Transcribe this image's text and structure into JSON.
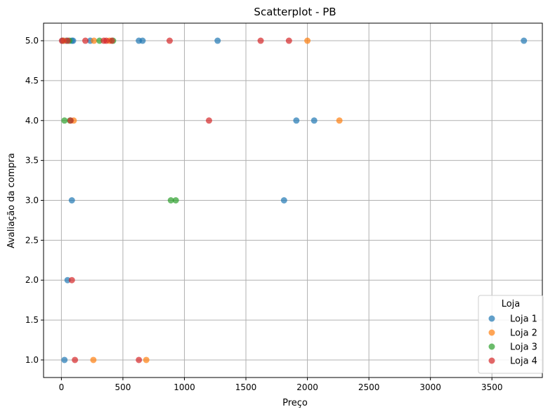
{
  "chart_data": {
    "type": "scatter",
    "title": "Scatterplot - PB",
    "xlabel": "Preço",
    "ylabel": "Avaliação da compra",
    "xlim": [
      -145,
      3910
    ],
    "ylim": [
      0.78,
      5.22
    ],
    "xticks": [
      0,
      500,
      1000,
      1500,
      2000,
      2500,
      3000,
      3500
    ],
    "yticks": [
      1.0,
      1.5,
      2.0,
      2.5,
      3.0,
      3.5,
      4.0,
      4.5,
      5.0
    ],
    "xtick_labels": [
      "0",
      "500",
      "1000",
      "1500",
      "2000",
      "2500",
      "3000",
      "3500"
    ],
    "ytick_labels": [
      "1.0",
      "1.5",
      "2.0",
      "2.5",
      "3.0",
      "3.5",
      "4.0",
      "4.5",
      "5.0"
    ],
    "grid": true,
    "legend_title": "Loja",
    "legend_position": "lower-right",
    "series": [
      {
        "name": "Loja 1",
        "color": "#1f77b4",
        "points": [
          [
            10,
            5
          ],
          [
            40,
            5
          ],
          [
            85,
            5
          ],
          [
            95,
            5
          ],
          [
            235,
            5
          ],
          [
            630,
            5
          ],
          [
            660,
            5
          ],
          [
            1270,
            5
          ],
          [
            3760,
            5
          ],
          [
            1910,
            4
          ],
          [
            2055,
            4
          ],
          [
            85,
            3
          ],
          [
            1810,
            3
          ],
          [
            50,
            2
          ],
          [
            25,
            1
          ]
        ]
      },
      {
        "name": "Loja 2",
        "color": "#ff7f0e",
        "points": [
          [
            20,
            5
          ],
          [
            265,
            5
          ],
          [
            390,
            5
          ],
          [
            2000,
            5
          ],
          [
            100,
            4
          ],
          [
            2260,
            4
          ],
          [
            260,
            1
          ],
          [
            690,
            1
          ]
        ]
      },
      {
        "name": "Loja 3",
        "color": "#2ca02c",
        "points": [
          [
            65,
            5
          ],
          [
            310,
            5
          ],
          [
            420,
            5
          ],
          [
            25,
            4
          ],
          [
            70,
            4
          ],
          [
            890,
            3
          ],
          [
            930,
            3
          ]
        ]
      },
      {
        "name": "Loja 4",
        "color": "#d62728",
        "points": [
          [
            5,
            5
          ],
          [
            50,
            5
          ],
          [
            195,
            5
          ],
          [
            345,
            5
          ],
          [
            365,
            5
          ],
          [
            410,
            5
          ],
          [
            880,
            5
          ],
          [
            1620,
            5
          ],
          [
            1850,
            5
          ],
          [
            75,
            4
          ],
          [
            1200,
            4
          ],
          [
            85,
            2
          ],
          [
            110,
            1
          ],
          [
            630,
            1
          ]
        ]
      }
    ]
  }
}
